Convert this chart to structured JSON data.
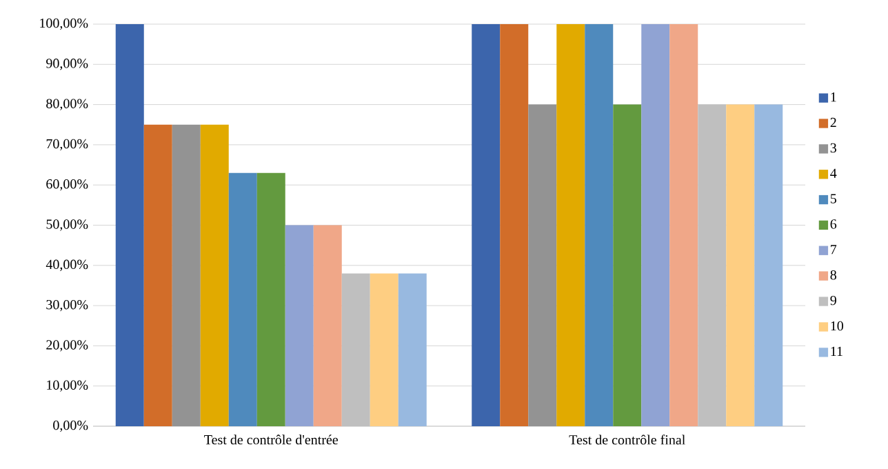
{
  "chart_data": {
    "type": "bar",
    "categories": [
      "Test de contrôle d'entrée",
      "Test de contrôle final"
    ],
    "series": [
      {
        "name": "1",
        "color": "#3c65ac",
        "values": [
          100,
          100
        ]
      },
      {
        "name": "2",
        "color": "#d26d29",
        "values": [
          75,
          100
        ]
      },
      {
        "name": "3",
        "color": "#939393",
        "values": [
          75,
          80
        ]
      },
      {
        "name": "4",
        "color": "#e1aa00",
        "values": [
          75,
          100
        ]
      },
      {
        "name": "5",
        "color": "#4f8abd",
        "values": [
          63,
          100
        ]
      },
      {
        "name": "6",
        "color": "#639a3f",
        "values": [
          63,
          80
        ]
      },
      {
        "name": "7",
        "color": "#90a3d3",
        "values": [
          50,
          100
        ]
      },
      {
        "name": "8",
        "color": "#f0a788",
        "values": [
          50,
          100
        ]
      },
      {
        "name": "9",
        "color": "#bfbfbf",
        "values": [
          38,
          80
        ]
      },
      {
        "name": "10",
        "color": "#fece82",
        "values": [
          38,
          80
        ]
      },
      {
        "name": "11",
        "color": "#98b9e0",
        "values": [
          38,
          80
        ]
      }
    ],
    "ylim": [
      0,
      100
    ],
    "yticks": [
      {
        "value": 0,
        "label": "0,00%"
      },
      {
        "value": 10,
        "label": "10,00%"
      },
      {
        "value": 20,
        "label": "20,00%"
      },
      {
        "value": 30,
        "label": "30,00%"
      },
      {
        "value": 40,
        "label": "40,00%"
      },
      {
        "value": 50,
        "label": "50,00%"
      },
      {
        "value": 60,
        "label": "60,00%"
      },
      {
        "value": 70,
        "label": "70,00%"
      },
      {
        "value": 80,
        "label": "80,00%"
      },
      {
        "value": 90,
        "label": "90,00%"
      },
      {
        "value": 100,
        "label": "100,00%"
      }
    ],
    "grid": "y",
    "legend": "right"
  }
}
